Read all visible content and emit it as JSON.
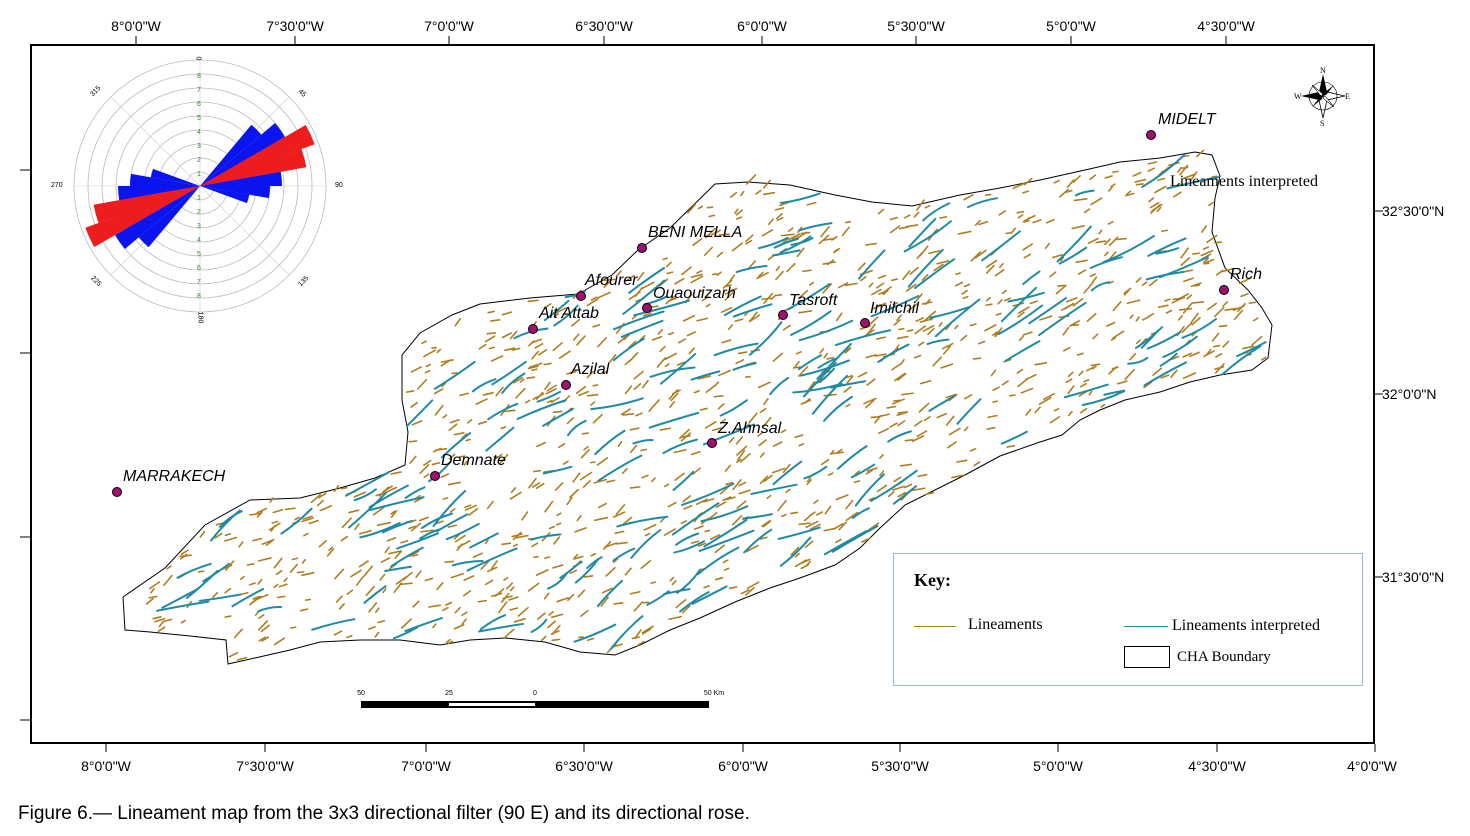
{
  "longitudes_top": [
    "8°0'0\"W",
    "7°30'0\"W",
    "7°0'0\"W",
    "6°30'0\"W",
    "6°0'0\"W",
    "5°30'0\"W",
    "5°0'0\"W",
    "4°30'0\"W"
  ],
  "longitudes_bottom": [
    "8°0'0\"W",
    "7°30'0\"W",
    "7°0'0\"W",
    "6°30'0\"W",
    "6°0'0\"W",
    "5°30'0\"W",
    "5°0'0\"W",
    "4°30'0\"W",
    "4°0'0\"W"
  ],
  "latitudes_right": [
    "32°30'0\"N",
    "32°0'0\"N",
    "31°30'0\"N"
  ],
  "cities": [
    "MIDELT",
    "BENI MELLA",
    "Rich",
    "Afourer",
    "Ouaouizarh",
    "Tasroft",
    "Imilchil",
    "Ait Attab",
    "Azilal",
    "Z.Ahnsal",
    "Demnate",
    "MARRAKECH"
  ],
  "map_label": "Lineaments interpreted",
  "key": {
    "title": "Key:",
    "lineaments": "Lineaments",
    "lineaments_interpreted": "Lineaments interpreted",
    "boundary": "CHA Boundary"
  },
  "colors": {
    "lineaments": "#b07d1e",
    "lineaments_interpreted": "#1f8aa3",
    "rose_major": "#ee1c1c",
    "rose_minor": "#0a14ee"
  },
  "scale_bar": {
    "labels": [
      "50",
      "25",
      "0",
      "50 Km"
    ]
  },
  "compass": {
    "n": "N",
    "s": "S",
    "e": "E",
    "w": "W"
  },
  "rose": {
    "angle_labels": [
      "0",
      "45",
      "90",
      "135",
      "180",
      "225",
      "270",
      "315"
    ],
    "ring_labels": [
      "9",
      "8",
      "7",
      "6",
      "5",
      "4",
      "3",
      "2",
      "1"
    ]
  },
  "caption": "Figure 6.— Lineament map from the 3x3 directional filter (90 E) and its directional rose."
}
